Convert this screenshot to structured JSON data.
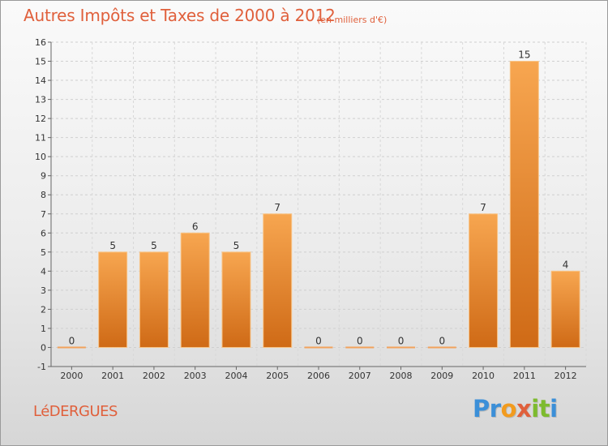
{
  "header": {
    "title": "Autres Impôts et Taxes de 2000 à 2012",
    "unit": "(en milliers d'€)"
  },
  "footer": {
    "commune": "LéDERGUES",
    "brand_letters": [
      {
        "ch": "P",
        "color": "#3b8fd8"
      },
      {
        "ch": "r",
        "color": "#3b8fd8"
      },
      {
        "ch": "o",
        "color": "#f29b1e"
      },
      {
        "ch": "x",
        "color": "#e0603c"
      },
      {
        "ch": "i",
        "color": "#7dbb2e"
      },
      {
        "ch": "t",
        "color": "#7dbb2e"
      },
      {
        "ch": "i",
        "color": "#3b8fd8"
      }
    ]
  },
  "chart_data": {
    "type": "bar",
    "categories": [
      "2000",
      "2001",
      "2002",
      "2003",
      "2004",
      "2005",
      "2006",
      "2007",
      "2008",
      "2009",
      "2010",
      "2011",
      "2012"
    ],
    "values": [
      0,
      5,
      5,
      6,
      5,
      7,
      0,
      0,
      0,
      0,
      7,
      15,
      4
    ],
    "data_labels": [
      "0",
      "5",
      "5",
      "6",
      "5",
      "7",
      "0",
      "0",
      "0",
      "0",
      "7",
      "15",
      "4"
    ],
    "ylim": [
      -1,
      16
    ],
    "yticks": [
      "-1",
      "0",
      "1",
      "2",
      "3",
      "4",
      "5",
      "6",
      "7",
      "8",
      "9",
      "10",
      "11",
      "12",
      "13",
      "14",
      "15",
      "16"
    ],
    "grid": true,
    "bar_color_top": "#f7a650",
    "bar_color_bottom": "#cf6a16"
  }
}
